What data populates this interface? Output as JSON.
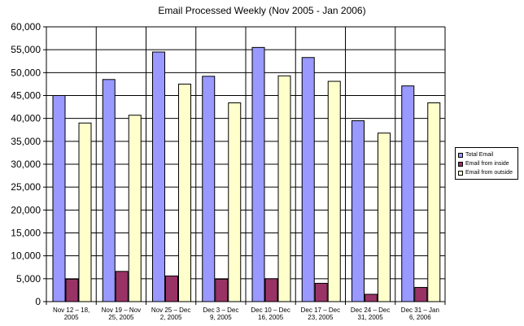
{
  "chart_data": {
    "type": "bar",
    "title": "Email Processed Weekly (Nov 2005 - Jan 2006)",
    "xlabel": "",
    "ylabel": "",
    "ylim": [
      0,
      60000
    ],
    "ytick_step": 5000,
    "ytick_labels": [
      "0",
      "5,000",
      "10,000",
      "15,000",
      "20,000",
      "25,000",
      "30,000",
      "35,000",
      "40,000",
      "45,000",
      "50,000",
      "55,000",
      "60,000"
    ],
    "grid": true,
    "legend_position": "right",
    "categories": [
      [
        "Nov 12 – 18,",
        "2005"
      ],
      [
        "Nov 19 – Nov",
        "25, 2005"
      ],
      [
        "Nov 25 – Dec",
        "2, 2005"
      ],
      [
        "Dec 3 – Dec",
        "9, 2005"
      ],
      [
        "Dec 10 – Dec",
        "16, 2005"
      ],
      [
        "Dec 17 – Dec",
        "23, 2005"
      ],
      [
        "Dec 24 – Dec",
        "31, 2005"
      ],
      [
        "Dec 31 – Jan",
        "6, 2006"
      ]
    ],
    "series": [
      {
        "name": "Total Email",
        "color": "#9999ff",
        "values": [
          45000,
          48500,
          54500,
          49200,
          55500,
          53300,
          39500,
          47100
        ]
      },
      {
        "name": "Email from inside",
        "color": "#993366",
        "values": [
          4900,
          6600,
          5600,
          4900,
          5000,
          4000,
          1600,
          3100
        ]
      },
      {
        "name": "Email from outside",
        "color": "#ffffcc",
        "values": [
          39000,
          40700,
          47500,
          43400,
          49300,
          48100,
          36800,
          43400
        ]
      }
    ]
  }
}
